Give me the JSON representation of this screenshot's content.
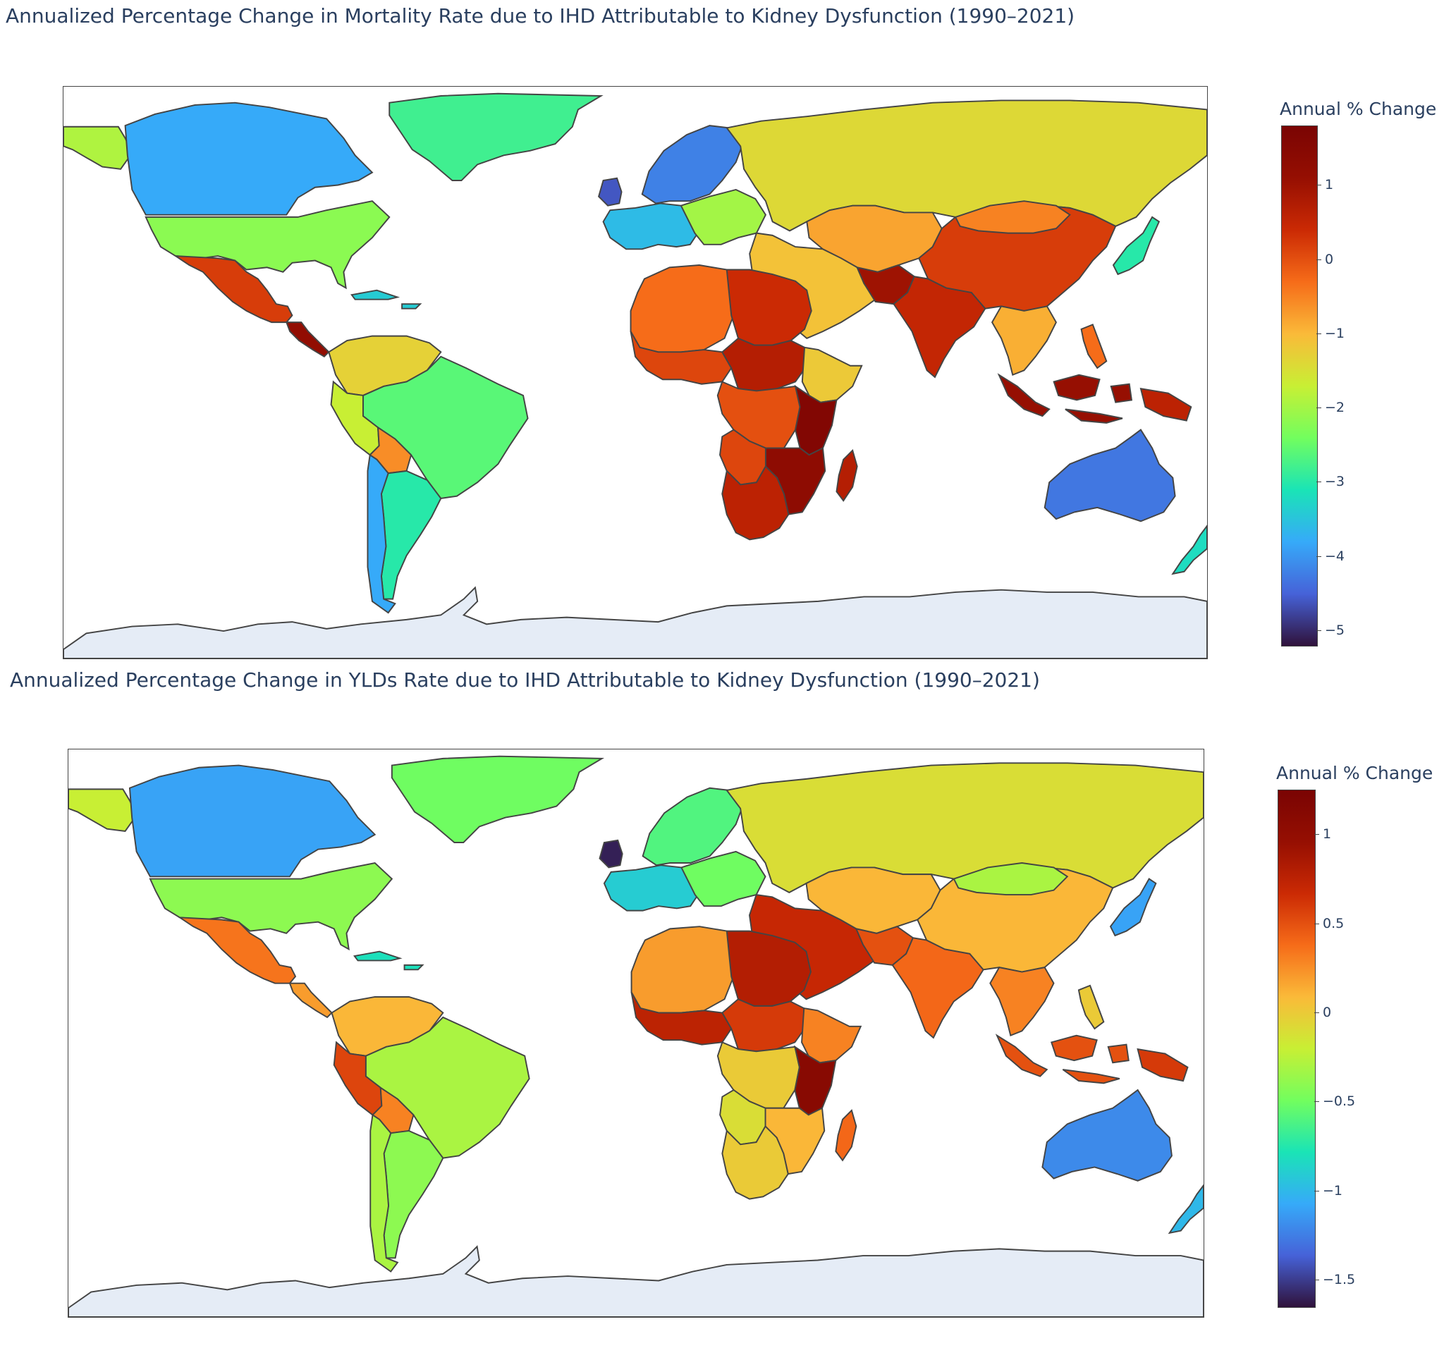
{
  "panels": [
    {
      "id": "mortality",
      "title": "Annualized Percentage Change in Mortality Rate due to IHD Attributable to Kidney Dysfunction (1990–2021)",
      "colorbar": {
        "title": "Annual % Change",
        "min": -5.2,
        "max": 1.8,
        "ticks": [
          "1",
          "0",
          "−1",
          "−2",
          "−3",
          "−4",
          "−5"
        ],
        "tick_values": [
          1,
          0,
          -1,
          -2,
          -3,
          -4,
          -5
        ]
      },
      "regions": [
        {
          "name": "Alaska",
          "value": -1.9
        },
        {
          "name": "Canada",
          "value": -3.8
        },
        {
          "name": "Greenland",
          "value": -2.8
        },
        {
          "name": "United States",
          "value": -2.2
        },
        {
          "name": "Mexico",
          "value": 0.2
        },
        {
          "name": "Central America",
          "value": 1.2
        },
        {
          "name": "Caribbean",
          "value": -3.4
        },
        {
          "name": "Colombia / Venezuela",
          "value": -1.3
        },
        {
          "name": "Brazil",
          "value": -2.6
        },
        {
          "name": "Peru",
          "value": -1.7
        },
        {
          "name": "Bolivia",
          "value": -0.6
        },
        {
          "name": "Argentina",
          "value": -3.0
        },
        {
          "name": "Chile",
          "value": -3.8
        },
        {
          "name": "Western Europe",
          "value": -3.6
        },
        {
          "name": "United Kingdom",
          "value": -4.6
        },
        {
          "name": "Scandinavia",
          "value": -4.2
        },
        {
          "name": "Eastern Europe",
          "value": -2.0
        },
        {
          "name": "Russia",
          "value": -1.4
        },
        {
          "name": "Central Asia",
          "value": -0.8
        },
        {
          "name": "Middle East",
          "value": -1.1
        },
        {
          "name": "Pakistan",
          "value": 1.0
        },
        {
          "name": "India",
          "value": 0.5
        },
        {
          "name": "China",
          "value": 0.2
        },
        {
          "name": "Mongolia",
          "value": -0.5
        },
        {
          "name": "Japan",
          "value": -3.0
        },
        {
          "name": "Southeast Asia",
          "value": -0.9
        },
        {
          "name": "Indonesia",
          "value": 1.1
        },
        {
          "name": "Papua New Guinea",
          "value": 0.6
        },
        {
          "name": "Philippines",
          "value": -0.3
        },
        {
          "name": "North Africa",
          "value": -0.3
        },
        {
          "name": "Libya / Egypt",
          "value": 0.4
        },
        {
          "name": "West Africa",
          "value": 0.1
        },
        {
          "name": "Sudan / Chad",
          "value": 0.7
        },
        {
          "name": "Ethiopia",
          "value": -1.2
        },
        {
          "name": "Central Africa",
          "value": 0.0
        },
        {
          "name": "Kenya / Tanzania",
          "value": 1.6
        },
        {
          "name": "Southeast Africa",
          "value": 1.3
        },
        {
          "name": "Angola",
          "value": 0.1
        },
        {
          "name": "Southern Africa",
          "value": 0.6
        },
        {
          "name": "Madagascar",
          "value": 0.7
        },
        {
          "name": "Australia",
          "value": -4.3
        },
        {
          "name": "New Zealand",
          "value": -3.2
        }
      ]
    },
    {
      "id": "ylds",
      "title": "Annualized Percentage Change in YLDs Rate due to IHD Attributable to Kidney Dysfunction (1990–2021)",
      "colorbar": {
        "title": "Annual % Change",
        "min": -1.65,
        "max": 1.25,
        "ticks": [
          "1",
          "0.5",
          "0",
          "−0.5",
          "−1",
          "−1.5"
        ],
        "tick_values": [
          1,
          0.5,
          0,
          -0.5,
          -1,
          -1.5
        ]
      },
      "regions": [
        {
          "name": "Alaska",
          "value": -0.2
        },
        {
          "name": "Canada",
          "value": -1.1
        },
        {
          "name": "Greenland",
          "value": -0.5
        },
        {
          "name": "United States",
          "value": -0.4
        },
        {
          "name": "Mexico",
          "value": 0.35
        },
        {
          "name": "Central America",
          "value": 0.2
        },
        {
          "name": "Caribbean",
          "value": -0.8
        },
        {
          "name": "Colombia / Venezuela",
          "value": 0.1
        },
        {
          "name": "Brazil",
          "value": -0.3
        },
        {
          "name": "Peru",
          "value": 0.55
        },
        {
          "name": "Bolivia",
          "value": 0.3
        },
        {
          "name": "Argentina",
          "value": -0.4
        },
        {
          "name": "Chile",
          "value": -0.3
        },
        {
          "name": "Western Europe",
          "value": -0.9
        },
        {
          "name": "United Kingdom",
          "value": -1.6
        },
        {
          "name": "Scandinavia",
          "value": -0.6
        },
        {
          "name": "Eastern Europe",
          "value": -0.5
        },
        {
          "name": "Russia",
          "value": -0.1
        },
        {
          "name": "Central Asia",
          "value": 0.1
        },
        {
          "name": "Middle East",
          "value": 0.7
        },
        {
          "name": "Pakistan",
          "value": 0.5
        },
        {
          "name": "India",
          "value": 0.4
        },
        {
          "name": "China",
          "value": 0.1
        },
        {
          "name": "Mongolia",
          "value": -0.3
        },
        {
          "name": "Japan",
          "value": -1.1
        },
        {
          "name": "Southeast Asia",
          "value": 0.3
        },
        {
          "name": "Indonesia",
          "value": 0.5
        },
        {
          "name": "Papua New Guinea",
          "value": 0.6
        },
        {
          "name": "Philippines",
          "value": 0.0
        },
        {
          "name": "North Africa",
          "value": 0.2
        },
        {
          "name": "Libya / Egypt",
          "value": 0.8
        },
        {
          "name": "West Africa",
          "value": 0.75
        },
        {
          "name": "Sudan / Chad",
          "value": 0.6
        },
        {
          "name": "Ethiopia",
          "value": 0.3
        },
        {
          "name": "Central Africa",
          "value": 0.0
        },
        {
          "name": "Kenya / Tanzania",
          "value": 1.1
        },
        {
          "name": "Southeast Africa",
          "value": 0.1
        },
        {
          "name": "Angola",
          "value": -0.1
        },
        {
          "name": "Southern Africa",
          "value": 0.0
        },
        {
          "name": "Madagascar",
          "value": 0.4
        },
        {
          "name": "Australia",
          "value": -1.2
        },
        {
          "name": "New Zealand",
          "value": -1.0
        }
      ]
    }
  ]
}
